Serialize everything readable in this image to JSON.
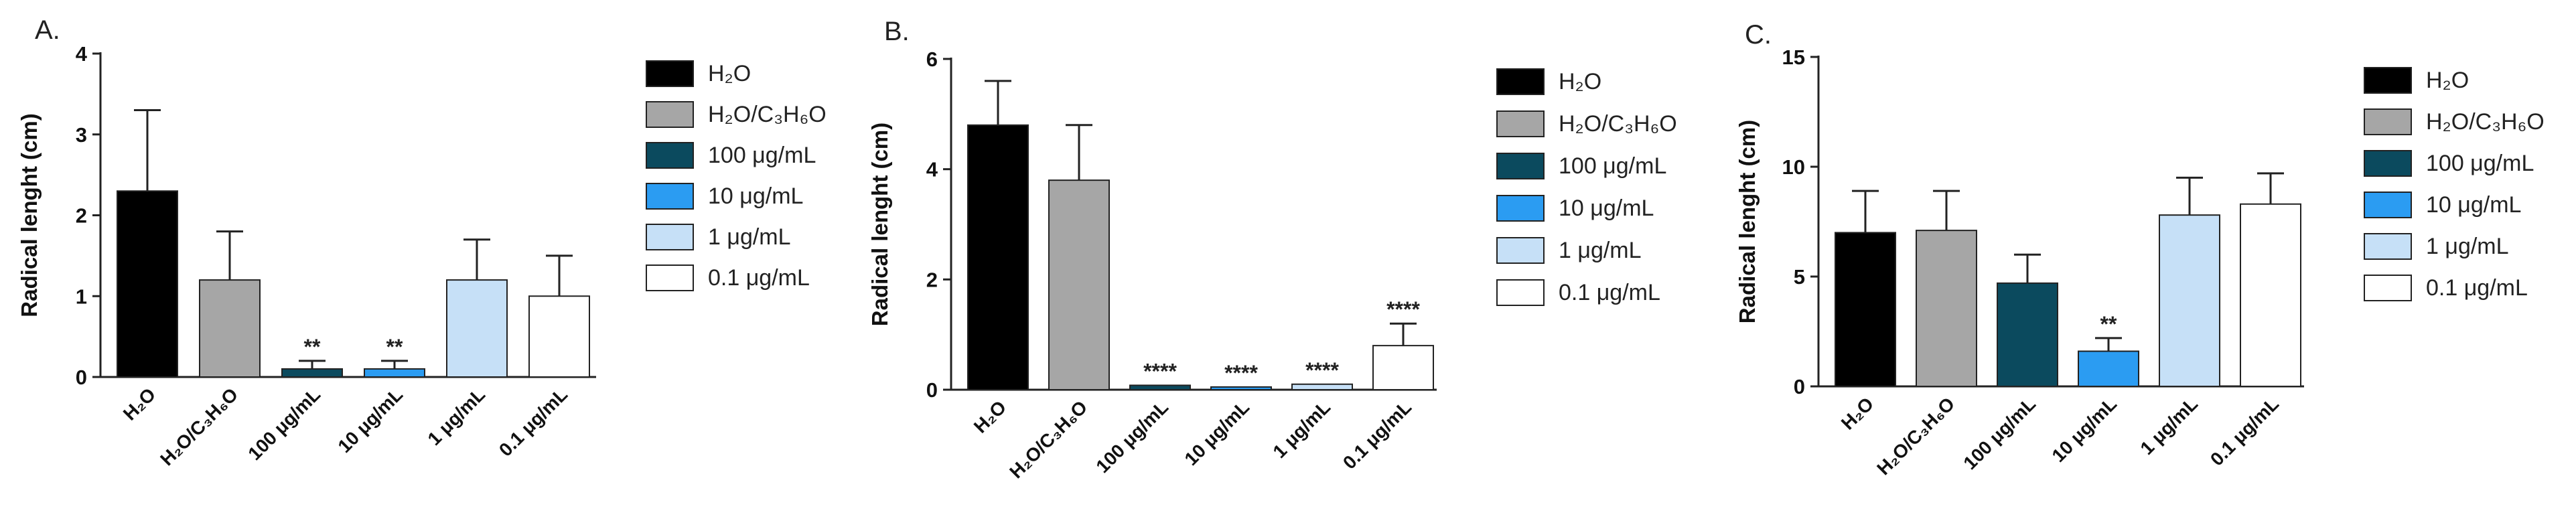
{
  "figure": {
    "legend_items": [
      {
        "label": "H₂O",
        "color": "#000000"
      },
      {
        "label": "H₂O/C₃H₆O",
        "color": "#a6a6a6"
      },
      {
        "label": "100 μg/mL",
        "color": "#0b4a5e"
      },
      {
        "label": "10  μg/mL",
        "color": "#2b9cf2"
      },
      {
        "label": "1 μg/mL",
        "color": "#c6e0f7"
      },
      {
        "label": "0.1 μg/mL",
        "color": "#ffffff"
      }
    ]
  },
  "chart_data": [
    {
      "panel": "A.",
      "type": "bar",
      "ylabel": "Radical lenght (cm)",
      "ylim": [
        0,
        4
      ],
      "yticks": [
        "0",
        "1",
        "2",
        "3",
        "4"
      ],
      "categories": [
        "H₂O",
        "H₂O/C₃H₆O",
        "100 μg/mL",
        "10  μg/mL",
        "1 μg/mL",
        "0.1 μg/mL"
      ],
      "values": [
        2.3,
        1.2,
        0.1,
        0.1,
        1.2,
        1.0
      ],
      "errors": [
        1.0,
        0.6,
        0.1,
        0.1,
        0.5,
        0.5
      ],
      "annotations": [
        "",
        "",
        "**",
        "**",
        "",
        ""
      ],
      "legend": "right",
      "grid": false
    },
    {
      "panel": "B.",
      "type": "bar",
      "ylabel": "Radical lenght (cm)",
      "ylim": [
        0,
        6
      ],
      "yticks": [
        "0",
        "2",
        "4",
        "6"
      ],
      "categories": [
        "H₂O",
        "H₂O/C₃H₆O",
        "100 μg/mL",
        "10  μg/mL",
        "1 μg/mL",
        "0.1 μg/mL"
      ],
      "values": [
        4.8,
        3.8,
        0.08,
        0.05,
        0.1,
        0.8
      ],
      "errors": [
        0.8,
        1.0,
        0.0,
        0.0,
        0.0,
        0.4
      ],
      "annotations": [
        "",
        "",
        "****",
        "****",
        "****",
        "****"
      ],
      "legend": "right",
      "grid": false
    },
    {
      "panel": "C.",
      "type": "bar",
      "ylabel": "Radical lenght (cm)",
      "ylim": [
        0,
        15
      ],
      "yticks": [
        "0",
        "5",
        "10",
        "15"
      ],
      "categories": [
        "H₂O",
        "H₂O/C₃H₆O",
        "100 μg/mL",
        "10  μg/mL",
        "1 μg/mL",
        "0.1 μg/mL"
      ],
      "values": [
        7.0,
        7.1,
        4.7,
        1.6,
        7.8,
        8.3
      ],
      "errors": [
        1.9,
        1.8,
        1.3,
        0.6,
        1.7,
        1.4
      ],
      "annotations": [
        "",
        "",
        "",
        "**",
        "",
        ""
      ],
      "legend": "right",
      "grid": false
    }
  ]
}
